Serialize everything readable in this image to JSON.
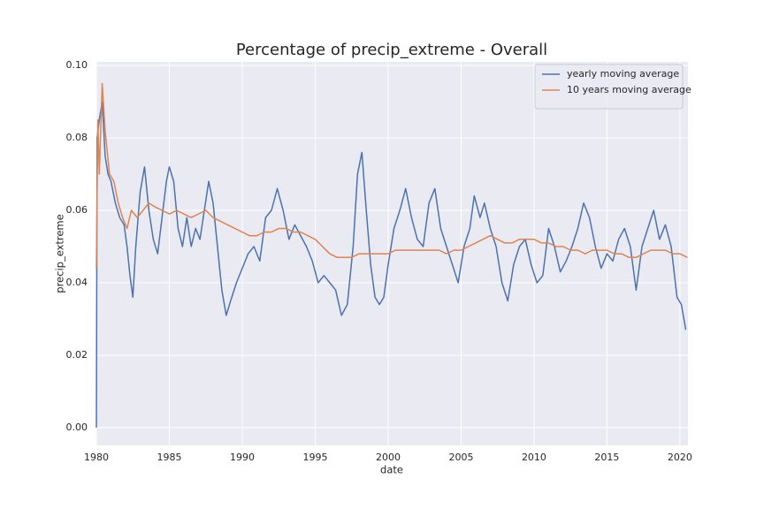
{
  "chart_data": {
    "type": "line",
    "title": "Percentage of precip_extreme - Overall",
    "xlabel": "date",
    "ylabel": "precip_extreme",
    "xlim": [
      1980,
      2020.55
    ],
    "xticks": [
      1980,
      1985,
      1990,
      1995,
      2000,
      2005,
      2010,
      2015,
      2020
    ],
    "ylim": [
      -0.0049,
      0.101
    ],
    "yticks": [
      {
        "value": 0,
        "label": "0.00"
      },
      {
        "value": 0.02,
        "label": "0.02"
      },
      {
        "value": 0.04,
        "label": "0.04"
      },
      {
        "value": 0.06,
        "label": "0.06"
      },
      {
        "value": 0.08,
        "label": "0.08"
      },
      {
        "value": 0.1,
        "label": "0.10"
      }
    ],
    "grid": true,
    "legend": "upper right",
    "background": "#eaeaf2",
    "series": [
      {
        "name": "yearly  moving average",
        "color": "#4c72b0",
        "x": [
          1980.0,
          1980.05,
          1980.2,
          1980.4,
          1980.6,
          1980.8,
          1981.0,
          1981.3,
          1981.6,
          1981.9,
          1982.1,
          1982.3,
          1982.5,
          1982.7,
          1983.0,
          1983.3,
          1983.6,
          1983.9,
          1984.2,
          1984.5,
          1984.8,
          1985.0,
          1985.3,
          1985.6,
          1985.9,
          1986.2,
          1986.5,
          1986.8,
          1987.1,
          1987.4,
          1987.7,
          1988.0,
          1988.3,
          1988.6,
          1988.9,
          1989.2,
          1989.6,
          1990.0,
          1990.4,
          1990.8,
          1991.2,
          1991.6,
          1992.0,
          1992.4,
          1992.8,
          1993.2,
          1993.6,
          1994.0,
          1994.4,
          1994.8,
          1995.2,
          1995.6,
          1996.0,
          1996.4,
          1996.8,
          1997.2,
          1997.6,
          1997.9,
          1998.2,
          1998.5,
          1998.8,
          1999.1,
          1999.4,
          1999.7,
          2000.0,
          2000.4,
          2000.8,
          2001.2,
          2001.6,
          2002.0,
          2002.4,
          2002.8,
          2003.2,
          2003.6,
          2004.0,
          2004.4,
          2004.8,
          2005.2,
          2005.6,
          2005.9,
          2006.3,
          2006.6,
          2007.0,
          2007.4,
          2007.8,
          2008.2,
          2008.6,
          2009.0,
          2009.4,
          2009.8,
          2010.2,
          2010.6,
          2011.0,
          2011.4,
          2011.8,
          2012.2,
          2012.6,
          2013.0,
          2013.4,
          2013.8,
          2014.2,
          2014.6,
          2015.0,
          2015.4,
          2015.8,
          2016.2,
          2016.6,
          2017.0,
          2017.4,
          2017.8,
          2018.2,
          2018.6,
          2019.0,
          2019.4,
          2019.8,
          2020.1,
          2020.4
        ],
        "values": [
          0.0,
          0.08,
          0.085,
          0.09,
          0.075,
          0.07,
          0.068,
          0.062,
          0.058,
          0.056,
          0.05,
          0.042,
          0.036,
          0.05,
          0.065,
          0.072,
          0.06,
          0.052,
          0.048,
          0.058,
          0.068,
          0.072,
          0.068,
          0.055,
          0.05,
          0.058,
          0.05,
          0.055,
          0.052,
          0.06,
          0.068,
          0.062,
          0.05,
          0.038,
          0.031,
          0.035,
          0.04,
          0.044,
          0.048,
          0.05,
          0.046,
          0.058,
          0.06,
          0.066,
          0.06,
          0.052,
          0.056,
          0.053,
          0.05,
          0.046,
          0.04,
          0.042,
          0.04,
          0.038,
          0.031,
          0.034,
          0.05,
          0.07,
          0.076,
          0.06,
          0.045,
          0.036,
          0.034,
          0.036,
          0.045,
          0.055,
          0.06,
          0.066,
          0.058,
          0.052,
          0.05,
          0.062,
          0.066,
          0.055,
          0.05,
          0.045,
          0.04,
          0.05,
          0.055,
          0.064,
          0.058,
          0.062,
          0.055,
          0.05,
          0.04,
          0.035,
          0.045,
          0.05,
          0.052,
          0.045,
          0.04,
          0.042,
          0.055,
          0.05,
          0.043,
          0.046,
          0.05,
          0.055,
          0.062,
          0.058,
          0.05,
          0.044,
          0.048,
          0.046,
          0.052,
          0.055,
          0.05,
          0.038,
          0.05,
          0.055,
          0.06,
          0.052,
          0.056,
          0.05,
          0.036,
          0.034,
          0.027
        ]
      },
      {
        "name": "10 years  moving average",
        "color": "#dd8452",
        "x": [
          1980.0,
          1980.1,
          1980.2,
          1980.4,
          1980.6,
          1980.9,
          1981.2,
          1981.5,
          1981.8,
          1982.1,
          1982.4,
          1982.8,
          1983.2,
          1983.6,
          1984.0,
          1984.5,
          1985.0,
          1985.5,
          1986.0,
          1986.5,
          1987.0,
          1987.5,
          1988.0,
          1988.5,
          1989.0,
          1989.5,
          1990.0,
          1990.5,
          1991.0,
          1991.5,
          1992.0,
          1992.5,
          1993.0,
          1993.5,
          1994.0,
          1994.5,
          1995.0,
          1995.5,
          1996.0,
          1996.5,
          1997.0,
          1997.5,
          1998.0,
          1998.5,
          1999.0,
          1999.5,
          2000.0,
          2000.5,
          2001.0,
          2001.5,
          2002.0,
          2002.5,
          2003.0,
          2003.5,
          2004.0,
          2004.5,
          2005.0,
          2005.5,
          2006.0,
          2006.5,
          2007.0,
          2007.5,
          2008.0,
          2008.5,
          2009.0,
          2009.5,
          2010.0,
          2010.5,
          2011.0,
          2011.5,
          2012.0,
          2012.5,
          2013.0,
          2013.5,
          2014.0,
          2014.5,
          2015.0,
          2015.5,
          2016.0,
          2016.5,
          2017.0,
          2017.5,
          2018.0,
          2018.5,
          2019.0,
          2019.5,
          2020.0,
          2020.5
        ],
        "values": [
          0.044,
          0.085,
          0.07,
          0.095,
          0.082,
          0.07,
          0.068,
          0.062,
          0.058,
          0.055,
          0.06,
          0.058,
          0.06,
          0.062,
          0.061,
          0.06,
          0.059,
          0.06,
          0.059,
          0.058,
          0.059,
          0.06,
          0.058,
          0.057,
          0.056,
          0.055,
          0.054,
          0.053,
          0.053,
          0.054,
          0.054,
          0.055,
          0.055,
          0.054,
          0.054,
          0.053,
          0.052,
          0.05,
          0.048,
          0.047,
          0.047,
          0.047,
          0.048,
          0.048,
          0.048,
          0.048,
          0.048,
          0.049,
          0.049,
          0.049,
          0.049,
          0.049,
          0.049,
          0.049,
          0.048,
          0.049,
          0.049,
          0.05,
          0.051,
          0.052,
          0.053,
          0.052,
          0.051,
          0.051,
          0.052,
          0.052,
          0.052,
          0.051,
          0.051,
          0.05,
          0.05,
          0.049,
          0.049,
          0.048,
          0.049,
          0.049,
          0.049,
          0.048,
          0.048,
          0.047,
          0.047,
          0.048,
          0.049,
          0.049,
          0.049,
          0.048,
          0.048,
          0.047
        ]
      }
    ]
  }
}
